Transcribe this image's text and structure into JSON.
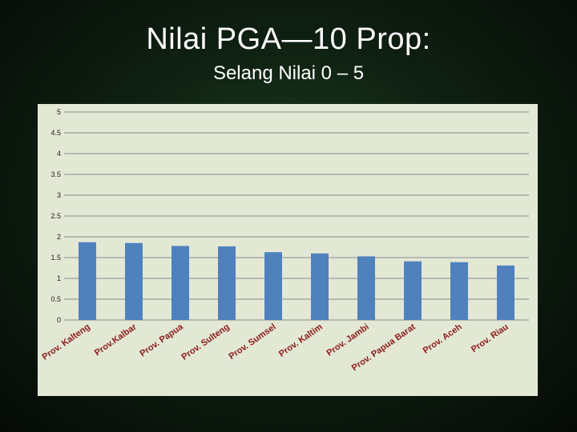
{
  "slide": {
    "title": "Nilai PGA—10 Prop:",
    "subtitle": "Selang Nilai 0 – 5"
  },
  "chart_data": {
    "type": "bar",
    "categories": [
      "Prov. Kalteng",
      "Prov.Kalbar",
      "Prov. Papua",
      "Prov. Sulteng",
      "Prov. Sumsel",
      "Prov. Kaltim",
      "Prov. Jambi",
      "Prov. Papua Barat",
      "Prov. Aceh",
      "Prov. Riau"
    ],
    "values": [
      1.87,
      1.85,
      1.78,
      1.77,
      1.63,
      1.6,
      1.53,
      1.41,
      1.39,
      1.31
    ],
    "ylim": [
      0,
      5
    ],
    "yticks": [
      "0",
      "0.5",
      "1",
      "1.5",
      "2",
      "2.5",
      "3",
      "3.5",
      "4",
      "4.5",
      "5"
    ],
    "grid": true,
    "colors": {
      "bar": "#4f81bd",
      "grid": "#8a8a8a",
      "axis_text": "#222222",
      "category_text": "#8b1a1a",
      "panel": "#e3e8d5"
    }
  }
}
